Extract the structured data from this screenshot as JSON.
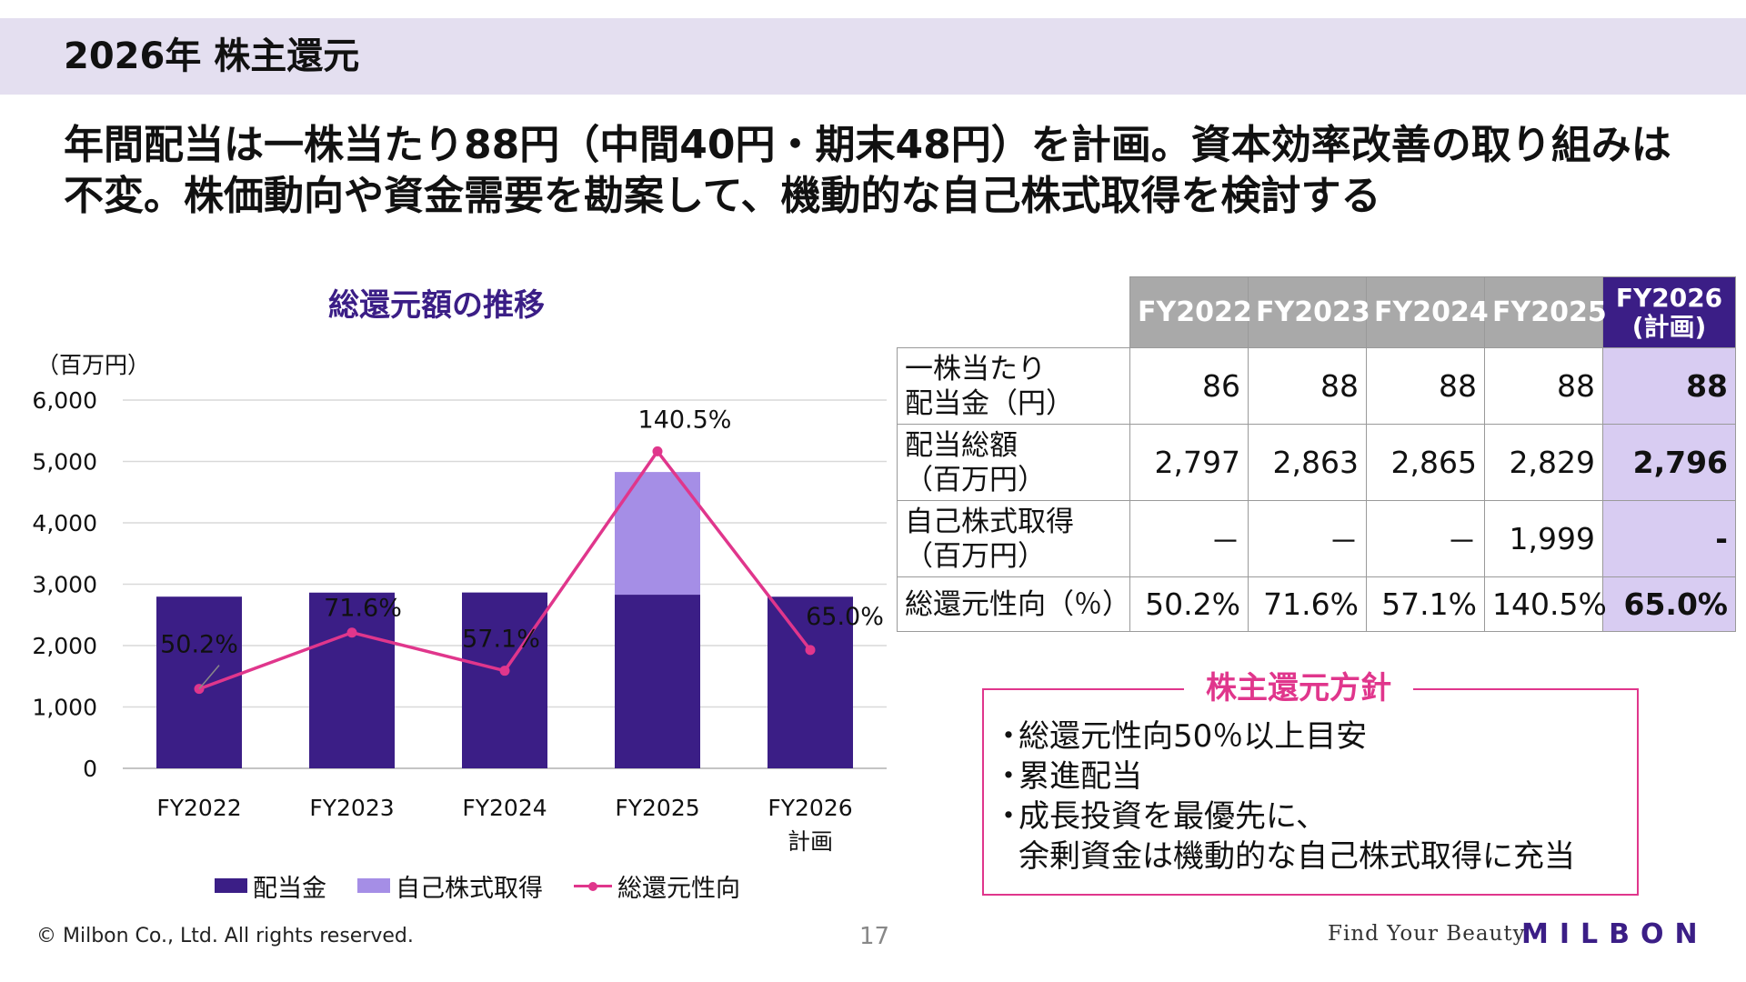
{
  "slide": {
    "title": "2026年 株主還元",
    "headline_line1": "年間配当は一株当たり88円（中間40円・期末48円）を計画。資本効率改善の取り組みは",
    "headline_line2": "不変。株価動向や資金需要を勘案して、機動的な自己株式取得を検討する"
  },
  "chart_data": {
    "type": "bar",
    "title": "総還元額の推移",
    "ylabel": "（百万円）",
    "categories": [
      "FY2022",
      "FY2023",
      "FY2024",
      "FY2025",
      "FY2026\n計画"
    ],
    "ylim": [
      0,
      6000
    ],
    "yticks": [
      0,
      1000,
      2000,
      3000,
      4000,
      5000,
      6000
    ],
    "ytick_labels": [
      "0",
      "1,000",
      "2,000",
      "3,000",
      "4,000",
      "5,000",
      "6,000"
    ],
    "stacked": true,
    "series": [
      {
        "name": "配当金",
        "kind": "bar",
        "color": "#3b1e86",
        "values": [
          2797,
          2863,
          2865,
          2829,
          2796
        ]
      },
      {
        "name": "自己株式取得",
        "kind": "bar",
        "color": "#a58ee6",
        "values": [
          0,
          0,
          0,
          1999,
          0
        ]
      },
      {
        "name": "総還元性向",
        "kind": "line",
        "axis": "secondary",
        "color": "#e0368c",
        "values": [
          50.2,
          71.6,
          57.1,
          140.5,
          65.0
        ],
        "labels": [
          "50.2%",
          "71.6%",
          "57.1%",
          "140.5%",
          "65.0%"
        ]
      }
    ],
    "grid": true,
    "legend": "bottom"
  },
  "table": {
    "headers": [
      "FY2022",
      "FY2023",
      "FY2024",
      "FY2025",
      "FY2026\n(計画)"
    ],
    "rows": [
      {
        "label": "一株当たり\n配当金（円）",
        "values": [
          "86",
          "88",
          "88",
          "88",
          "88"
        ]
      },
      {
        "label": "配当総額\n（百万円）",
        "values": [
          "2,797",
          "2,863",
          "2,865",
          "2,829",
          "2,796"
        ]
      },
      {
        "label": "自己株式取得\n（百万円）",
        "values": [
          "－",
          "－",
          "－",
          "1,999",
          "-"
        ]
      },
      {
        "label": "総還元性向（％）",
        "values": [
          "50.2%",
          "71.6%",
          "57.1%",
          "140.5%",
          "65.0%"
        ]
      }
    ]
  },
  "policy": {
    "title": "株主還元方針",
    "bullet": "・",
    "items": [
      "総還元性向50％以上目安",
      "累進配当",
      "成長投資を最優先に、\n余剰資金は機動的な自己株式取得に充当"
    ]
  },
  "footer": {
    "copyright": "© Milbon Co., Ltd. All rights reserved.",
    "page_number": "17",
    "tagline": "Find Your Beauty",
    "logo_text": "MILBON"
  },
  "colors": {
    "accent": "#3b1e86",
    "accent_light": "#a58ee6",
    "highlight_bg": "#d8ccf2",
    "pink": "#e0368c",
    "title_band": "#e4dff0"
  }
}
